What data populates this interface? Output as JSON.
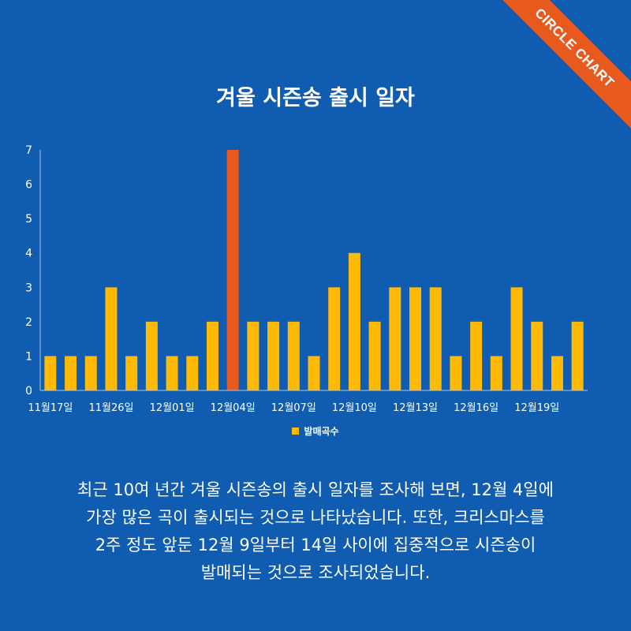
{
  "brand": {
    "label": "CIRCLE CHART"
  },
  "chart_data": {
    "type": "bar",
    "title": "겨울 시즌송 출시 일자",
    "series_name": "발매곡수",
    "tick_labels": [
      "11월17일",
      "11월26일",
      "12월01일",
      "12월04일",
      "12월07일",
      "12월10일",
      "12월13일",
      "12월16일",
      "12월19일"
    ],
    "tick_indices": [
      0,
      3,
      6,
      9,
      12,
      15,
      18,
      21,
      24
    ],
    "values": [
      1,
      1,
      1,
      3,
      1,
      2,
      1,
      1,
      2,
      7,
      2,
      2,
      2,
      1,
      3,
      4,
      2,
      3,
      3,
      3,
      1,
      2,
      1,
      3,
      2,
      1,
      2
    ],
    "highlight_index": 9,
    "ylim": [
      0,
      7
    ],
    "yticks": [
      0,
      1,
      2,
      3,
      4,
      5,
      6,
      7
    ],
    "legend_position": "bottom",
    "grid": false,
    "colors": {
      "bar": "#ffba08",
      "highlight": "#e8591d",
      "axis": "#a9c4e4"
    }
  },
  "caption": {
    "lines": [
      "최근 10여 년간 겨울 시즌송의 출시 일자를 조사해 보면, 12월 4일에",
      "가장 많은 곡이 출시되는 것으로 나타났습니다. 또한, 크리스마스를",
      "2주 정도 앞둔 12월 9일부터 14일 사이에 집중적으로 시즌송이",
      "발매되는 것으로 조사되었습니다."
    ]
  }
}
